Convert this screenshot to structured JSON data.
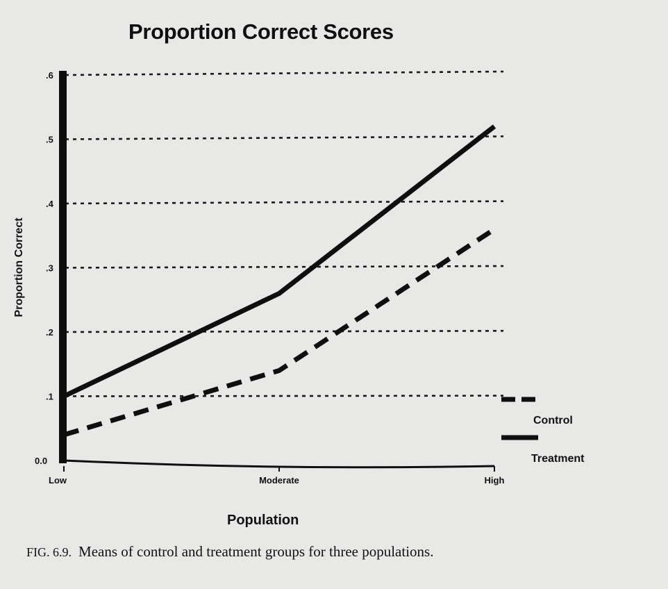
{
  "caption": {
    "figure_number": "FIG. 6.9.",
    "text": "Means of control and treatment groups for three populations."
  },
  "chart_data": {
    "type": "line",
    "title": "Proportion Correct Scores",
    "xlabel": "Population",
    "ylabel": "Proportion Correct",
    "categories": [
      "Low",
      "Moderate",
      "High"
    ],
    "yticks": [
      "0.0",
      ".1",
      ".2",
      ".3",
      ".4",
      ".5",
      ".6"
    ],
    "ylim": [
      0,
      0.6
    ],
    "grid": "horizontal dashed",
    "legend_position": "right",
    "series": [
      {
        "name": "Control",
        "values": [
          0.04,
          0.14,
          0.36
        ],
        "style": "dashed",
        "color": "#0f0f0f"
      },
      {
        "name": "Treatment",
        "values": [
          0.1,
          0.26,
          0.52
        ],
        "style": "solid",
        "color": "#0f0f0f"
      }
    ]
  }
}
